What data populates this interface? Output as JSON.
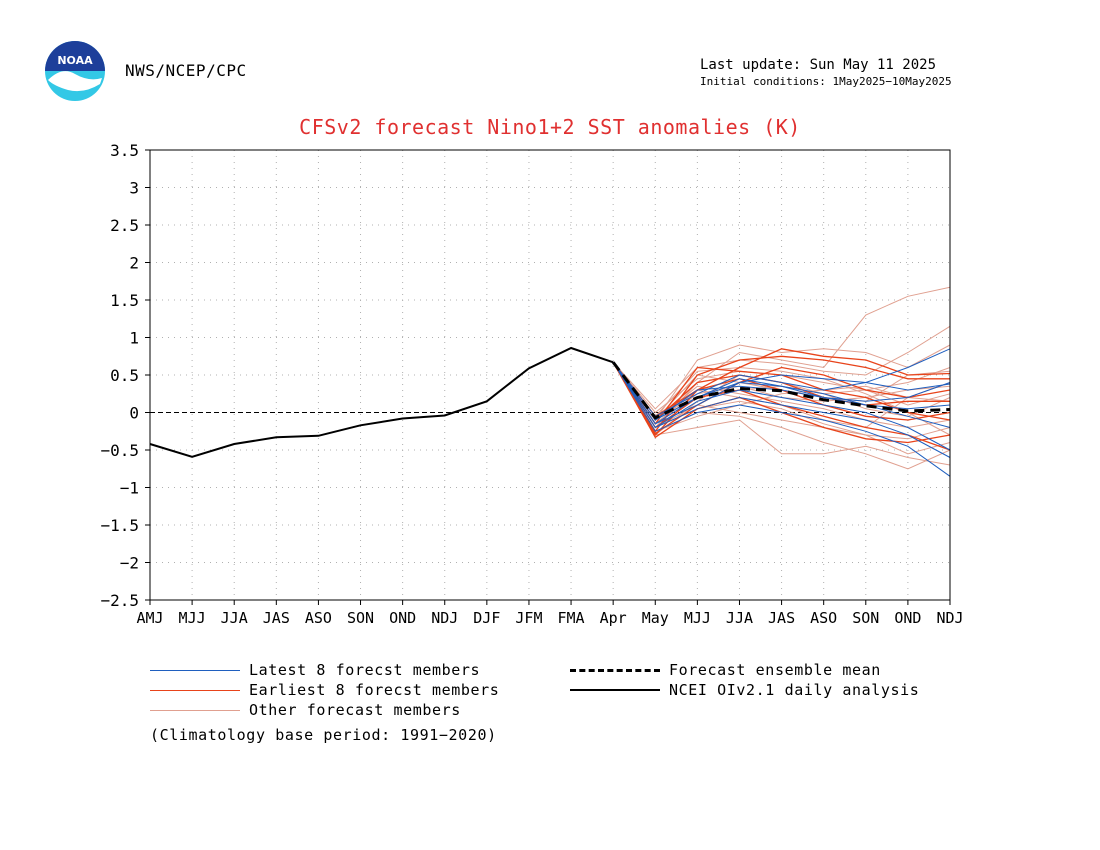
{
  "header": {
    "logo_text": "NOAA",
    "agency": "NWS/NCEP/CPC",
    "last_update": "Last update: Sun May 11 2025",
    "initial_conditions": "Initial conditions:  1May2025−10May2025"
  },
  "chart_data": {
    "type": "line",
    "title": "CFSv2 forecast Nino1+2 SST anomalies (K)",
    "categories": [
      "AMJ",
      "MJJ",
      "JJA",
      "JAS",
      "ASO",
      "SON",
      "OND",
      "NDJ",
      "DJF",
      "JFM",
      "FMA",
      "Apr",
      "May",
      "MJJ",
      "JJA",
      "JAS",
      "ASO",
      "SON",
      "OND",
      "NDJ"
    ],
    "ylim": [
      -2.5,
      3.5
    ],
    "yticks": [
      "3.5",
      "3",
      "2.5",
      "2",
      "1.5",
      "1",
      "0.5",
      "0",
      "-0.5",
      "-1",
      "-1.5",
      "-2",
      "-2.5"
    ],
    "grid": true,
    "colors": {
      "latest": "#1f5fbf",
      "earliest": "#e8431a",
      "other": "#e0a090",
      "analysis": "#000000",
      "mean": "#000000",
      "title": "#e03030"
    },
    "analysis": {
      "name": "NCEI OIv2.1 daily analysis",
      "values": [
        -0.42,
        -0.59,
        -0.42,
        -0.33,
        -0.31,
        -0.17,
        -0.08,
        -0.04,
        0.15,
        0.59,
        0.86,
        0.67
      ]
    },
    "ensemble_mean": {
      "name": "Forecast ensemble mean",
      "start_index": 11,
      "values": [
        0.67,
        -0.07,
        0.2,
        0.32,
        0.29,
        0.17,
        0.09,
        0.02,
        0.04
      ]
    },
    "latest_members": [
      [
        0.67,
        -0.15,
        0.1,
        0.4,
        0.5,
        0.45,
        0.4,
        0.3,
        0.38
      ],
      [
        0.67,
        -0.1,
        0.2,
        0.45,
        0.35,
        0.25,
        0.1,
        -0.05,
        -0.2
      ],
      [
        0.67,
        -0.2,
        0.15,
        0.3,
        0.2,
        0.1,
        0.0,
        -0.2,
        -0.5
      ],
      [
        0.67,
        -0.05,
        0.25,
        0.5,
        0.4,
        0.3,
        0.4,
        0.6,
        0.85
      ],
      [
        0.67,
        -0.25,
        0.0,
        0.1,
        0.0,
        -0.1,
        -0.25,
        -0.45,
        -0.85
      ],
      [
        0.67,
        -0.1,
        0.3,
        0.35,
        0.3,
        0.2,
        0.1,
        0.05,
        0.1
      ],
      [
        0.67,
        -0.2,
        0.05,
        0.2,
        0.1,
        0.0,
        -0.1,
        -0.3,
        -0.6
      ],
      [
        0.67,
        -0.15,
        0.2,
        0.4,
        0.35,
        0.2,
        0.15,
        0.2,
        0.4
      ]
    ],
    "earliest_members": [
      [
        0.67,
        -0.3,
        0.3,
        0.6,
        0.85,
        0.75,
        0.7,
        0.5,
        0.52
      ],
      [
        0.67,
        -0.25,
        0.5,
        0.7,
        0.75,
        0.7,
        0.6,
        0.45,
        0.45
      ],
      [
        0.67,
        -0.33,
        0.05,
        0.2,
        0.0,
        -0.2,
        -0.35,
        -0.4,
        -0.3
      ],
      [
        0.67,
        -0.1,
        0.4,
        0.5,
        0.4,
        0.2,
        0.1,
        0.15,
        0.15
      ],
      [
        0.67,
        -0.2,
        0.2,
        0.3,
        0.1,
        -0.05,
        -0.2,
        -0.3,
        -0.5
      ],
      [
        0.67,
        -0.15,
        0.6,
        0.55,
        0.5,
        0.3,
        0.2,
        0.0,
        -0.1
      ],
      [
        0.67,
        -0.28,
        0.1,
        0.4,
        0.6,
        0.5,
        0.3,
        0.2,
        0.3
      ],
      [
        0.67,
        -0.05,
        0.3,
        0.45,
        0.3,
        0.1,
        -0.05,
        -0.1,
        0.0
      ]
    ],
    "other_members": [
      [
        0.67,
        -0.2,
        0.4,
        0.8,
        0.7,
        0.6,
        1.3,
        1.55,
        1.67
      ],
      [
        0.67,
        -0.1,
        0.7,
        0.9,
        0.8,
        0.85,
        0.8,
        0.6,
        0.9
      ],
      [
        0.67,
        0.05,
        0.6,
        0.7,
        0.65,
        0.55,
        0.5,
        0.8,
        1.15
      ],
      [
        0.67,
        -0.15,
        0.3,
        0.2,
        0.1,
        -0.1,
        -0.2,
        0.2,
        0.4
      ],
      [
        0.67,
        -0.3,
        -0.2,
        -0.1,
        -0.55,
        -0.55,
        -0.45,
        -0.6,
        -0.7
      ],
      [
        0.67,
        -0.25,
        0.0,
        -0.05,
        -0.2,
        -0.4,
        -0.55,
        -0.75,
        -0.5
      ],
      [
        0.67,
        -0.1,
        0.5,
        0.4,
        0.3,
        0.2,
        0.15,
        0.5,
        0.55
      ],
      [
        0.67,
        -0.05,
        0.2,
        0.3,
        0.35,
        0.25,
        0.05,
        -0.05,
        0.2
      ],
      [
        0.67,
        -0.2,
        0.1,
        0.0,
        -0.1,
        -0.2,
        -0.3,
        -0.35,
        -0.2
      ],
      [
        0.67,
        0.0,
        0.45,
        0.55,
        0.5,
        0.4,
        0.3,
        0.1,
        0.25
      ],
      [
        0.67,
        -0.15,
        0.25,
        0.35,
        0.2,
        0.15,
        0.2,
        0.3,
        0.35
      ],
      [
        0.67,
        -0.25,
        -0.05,
        0.1,
        0.25,
        0.3,
        0.35,
        0.2,
        0.15
      ],
      [
        0.67,
        -0.1,
        0.35,
        0.25,
        0.15,
        0.05,
        -0.1,
        -0.2,
        -0.1
      ],
      [
        0.67,
        -0.3,
        0.15,
        0.5,
        0.4,
        0.25,
        0.3,
        0.4,
        0.6
      ],
      [
        0.67,
        -0.05,
        0.55,
        0.6,
        0.55,
        0.45,
        0.25,
        0.0,
        -0.3
      ],
      [
        0.67,
        -0.2,
        0.05,
        0.15,
        0.05,
        -0.15,
        -0.3,
        -0.55,
        -0.4
      ]
    ]
  },
  "legend": {
    "latest": "Latest 8 forecst members",
    "earliest": "Earliest 8 forecst members",
    "other": "Other forecast members",
    "mean": "Forecast ensemble mean",
    "analysis": "NCEI OIv2.1 daily analysis"
  },
  "footnote": "(Climatology base period: 1991−2020)"
}
